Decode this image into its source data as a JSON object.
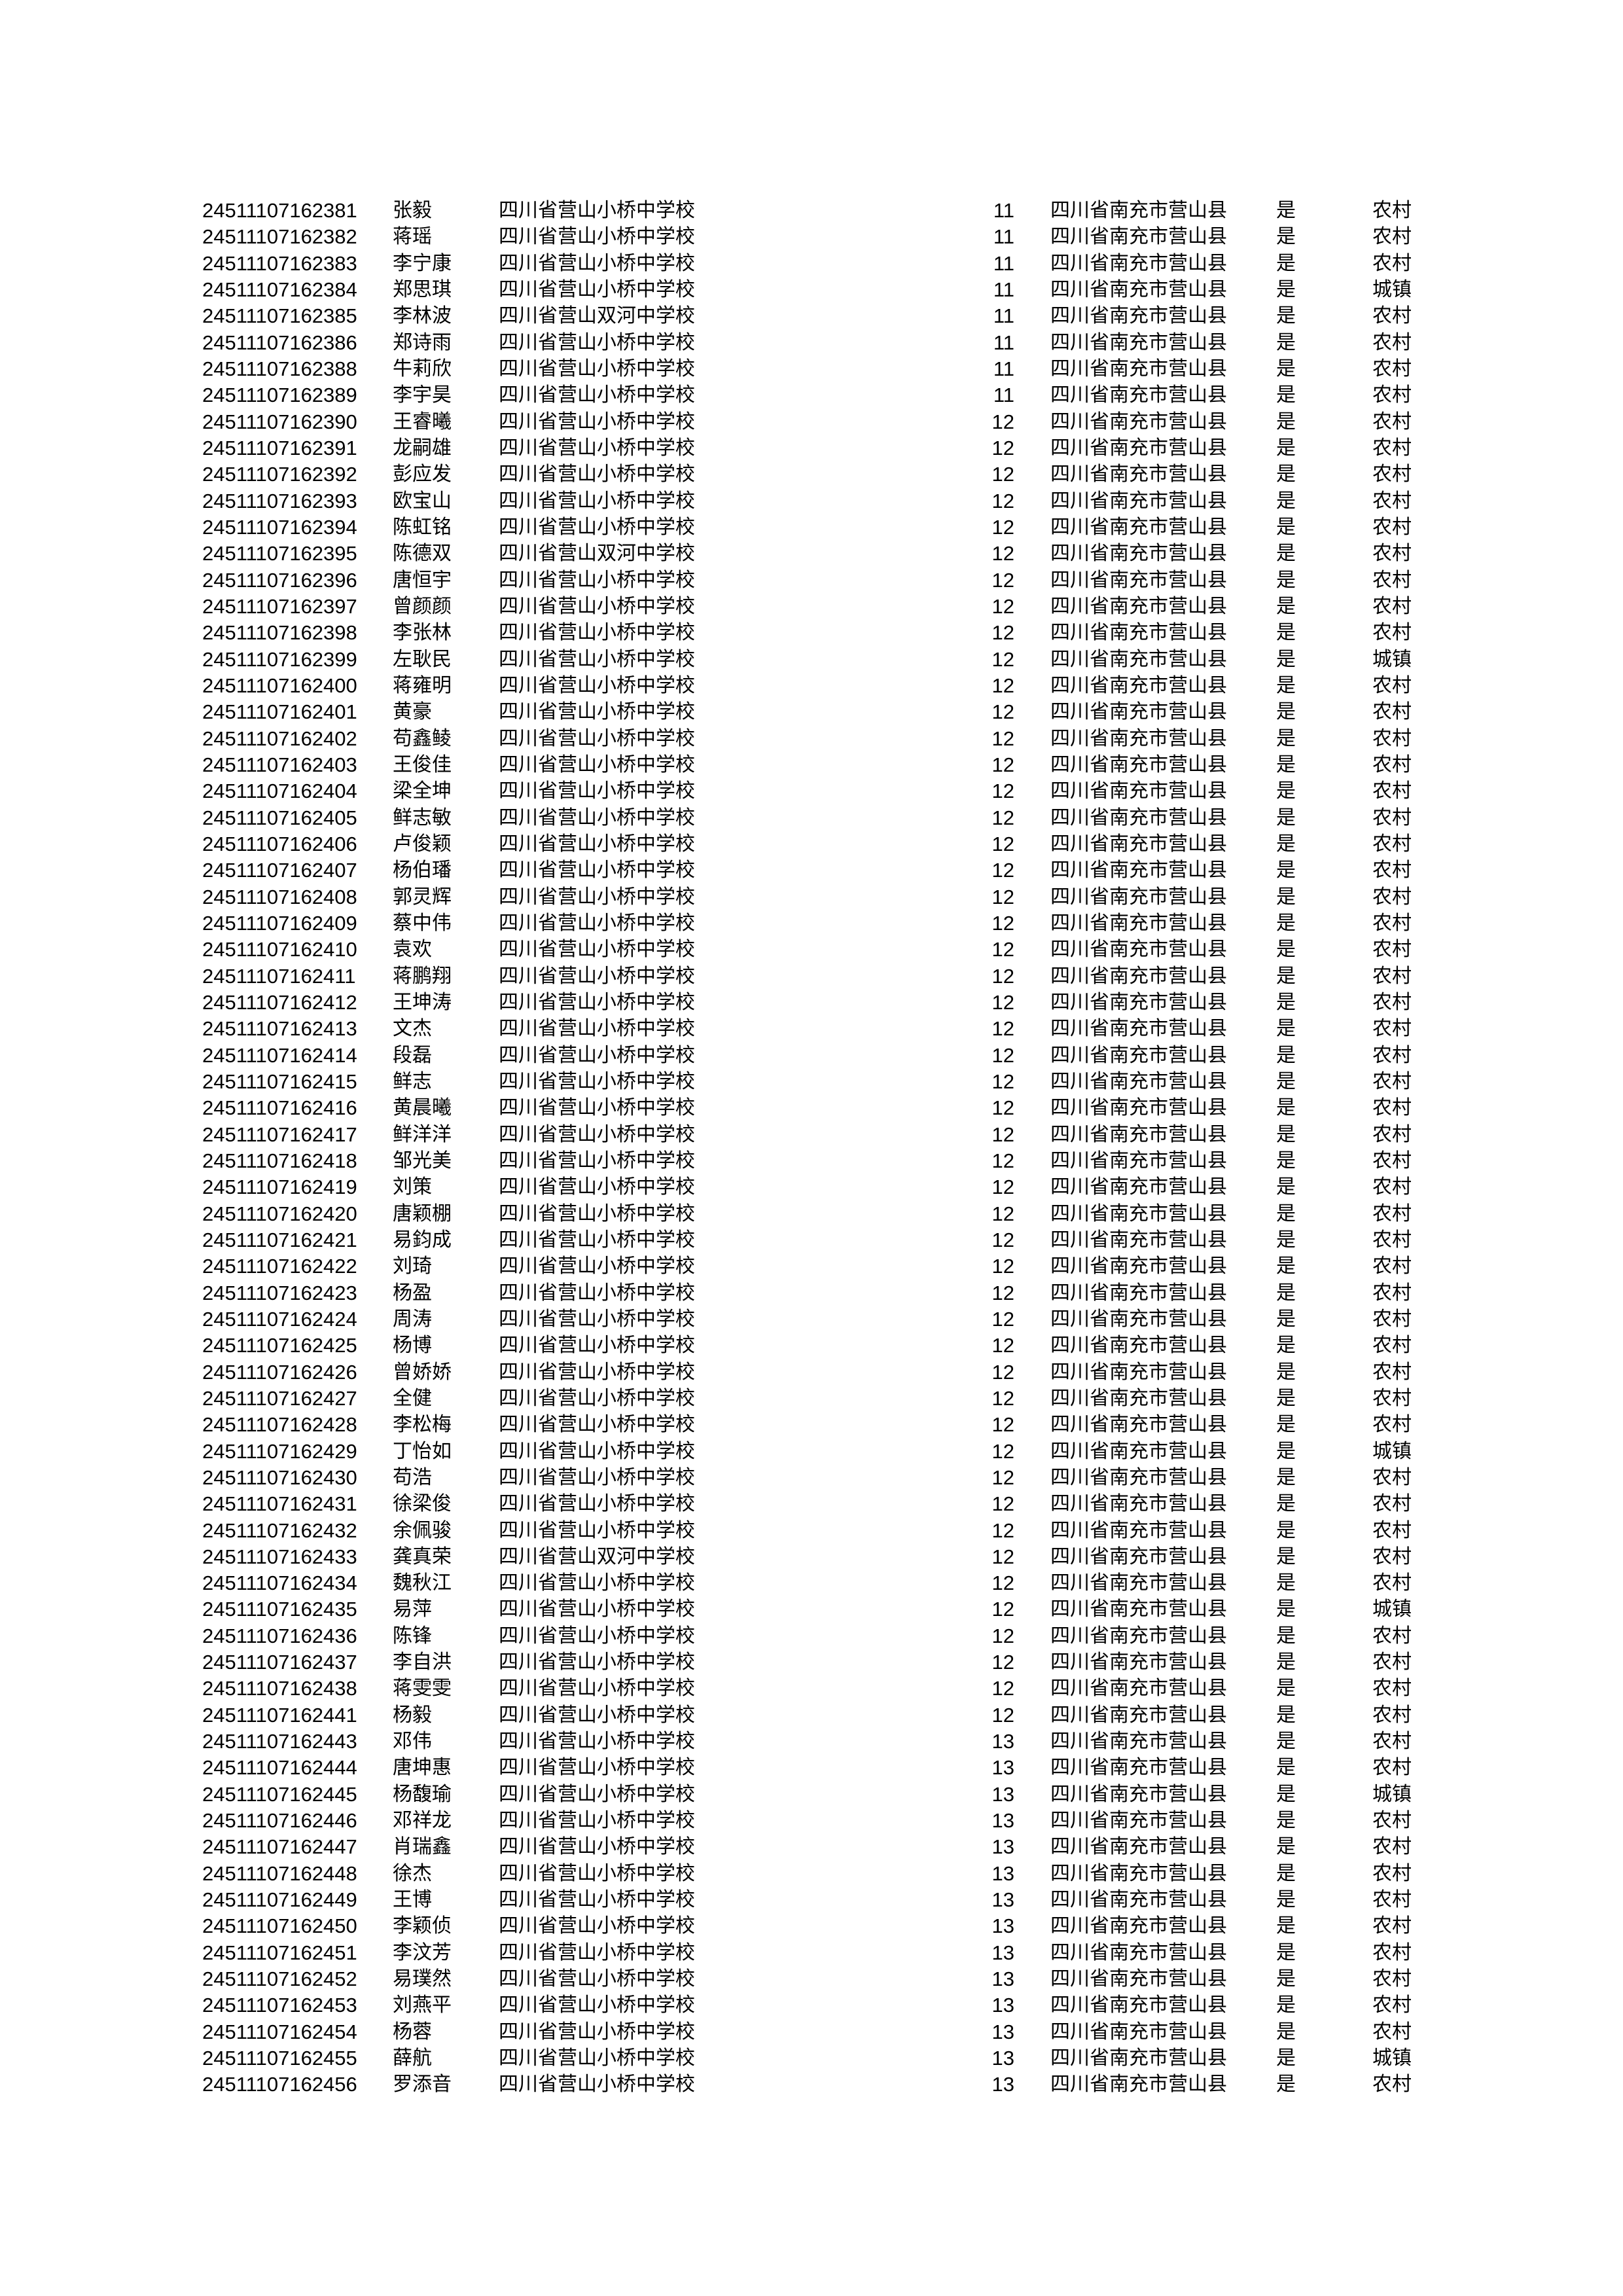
{
  "rows": [
    {
      "id": "24511107162381",
      "name": "张毅",
      "school": "四川省营山小桥中学校",
      "grade": "11",
      "address": "四川省南充市营山县",
      "flag": "是",
      "area": "农村"
    },
    {
      "id": "24511107162382",
      "name": "蒋瑶",
      "school": "四川省营山小桥中学校",
      "grade": "11",
      "address": "四川省南充市营山县",
      "flag": "是",
      "area": "农村"
    },
    {
      "id": "24511107162383",
      "name": "李宁康",
      "school": "四川省营山小桥中学校",
      "grade": "11",
      "address": "四川省南充市营山县",
      "flag": "是",
      "area": "农村"
    },
    {
      "id": "24511107162384",
      "name": "郑思琪",
      "school": "四川省营山小桥中学校",
      "grade": "11",
      "address": "四川省南充市营山县",
      "flag": "是",
      "area": "城镇"
    },
    {
      "id": "24511107162385",
      "name": "李林波",
      "school": "四川省营山双河中学校",
      "grade": "11",
      "address": "四川省南充市营山县",
      "flag": "是",
      "area": "农村"
    },
    {
      "id": "24511107162386",
      "name": "郑诗雨",
      "school": "四川省营山小桥中学校",
      "grade": "11",
      "address": "四川省南充市营山县",
      "flag": "是",
      "area": "农村"
    },
    {
      "id": "24511107162388",
      "name": "牛莉欣",
      "school": "四川省营山小桥中学校",
      "grade": "11",
      "address": "四川省南充市营山县",
      "flag": "是",
      "area": "农村"
    },
    {
      "id": "24511107162389",
      "name": "李宇昊",
      "school": "四川省营山小桥中学校",
      "grade": "11",
      "address": "四川省南充市营山县",
      "flag": "是",
      "area": "农村"
    },
    {
      "id": "24511107162390",
      "name": "王睿曦",
      "school": "四川省营山小桥中学校",
      "grade": "12",
      "address": "四川省南充市营山县",
      "flag": "是",
      "area": "农村"
    },
    {
      "id": "24511107162391",
      "name": "龙嗣雄",
      "school": "四川省营山小桥中学校",
      "grade": "12",
      "address": "四川省南充市营山县",
      "flag": "是",
      "area": "农村"
    },
    {
      "id": "24511107162392",
      "name": "彭应发",
      "school": "四川省营山小桥中学校",
      "grade": "12",
      "address": "四川省南充市营山县",
      "flag": "是",
      "area": "农村"
    },
    {
      "id": "24511107162393",
      "name": "欧宝山",
      "school": "四川省营山小桥中学校",
      "grade": "12",
      "address": "四川省南充市营山县",
      "flag": "是",
      "area": "农村"
    },
    {
      "id": "24511107162394",
      "name": "陈虹铭",
      "school": "四川省营山小桥中学校",
      "grade": "12",
      "address": "四川省南充市营山县",
      "flag": "是",
      "area": "农村"
    },
    {
      "id": "24511107162395",
      "name": "陈德双",
      "school": "四川省营山双河中学校",
      "grade": "12",
      "address": "四川省南充市营山县",
      "flag": "是",
      "area": "农村"
    },
    {
      "id": "24511107162396",
      "name": "唐恒宇",
      "school": "四川省营山小桥中学校",
      "grade": "12",
      "address": "四川省南充市营山县",
      "flag": "是",
      "area": "农村"
    },
    {
      "id": "24511107162397",
      "name": "曾颜颜",
      "school": "四川省营山小桥中学校",
      "grade": "12",
      "address": "四川省南充市营山县",
      "flag": "是",
      "area": "农村"
    },
    {
      "id": "24511107162398",
      "name": "李张林",
      "school": "四川省营山小桥中学校",
      "grade": "12",
      "address": "四川省南充市营山县",
      "flag": "是",
      "area": "农村"
    },
    {
      "id": "24511107162399",
      "name": "左耿民",
      "school": "四川省营山小桥中学校",
      "grade": "12",
      "address": "四川省南充市营山县",
      "flag": "是",
      "area": "城镇"
    },
    {
      "id": "24511107162400",
      "name": "蒋雍明",
      "school": "四川省营山小桥中学校",
      "grade": "12",
      "address": "四川省南充市营山县",
      "flag": "是",
      "area": "农村"
    },
    {
      "id": "24511107162401",
      "name": "黄豪",
      "school": "四川省营山小桥中学校",
      "grade": "12",
      "address": "四川省南充市营山县",
      "flag": "是",
      "area": "农村"
    },
    {
      "id": "24511107162402",
      "name": "苟鑫鲮",
      "school": "四川省营山小桥中学校",
      "grade": "12",
      "address": "四川省南充市营山县",
      "flag": "是",
      "area": "农村"
    },
    {
      "id": "24511107162403",
      "name": "王俊佳",
      "school": "四川省营山小桥中学校",
      "grade": "12",
      "address": "四川省南充市营山县",
      "flag": "是",
      "area": "农村"
    },
    {
      "id": "24511107162404",
      "name": "梁全坤",
      "school": "四川省营山小桥中学校",
      "grade": "12",
      "address": "四川省南充市营山县",
      "flag": "是",
      "area": "农村"
    },
    {
      "id": "24511107162405",
      "name": "鲜志敏",
      "school": "四川省营山小桥中学校",
      "grade": "12",
      "address": "四川省南充市营山县",
      "flag": "是",
      "area": "农村"
    },
    {
      "id": "24511107162406",
      "name": "卢俊颖",
      "school": "四川省营山小桥中学校",
      "grade": "12",
      "address": "四川省南充市营山县",
      "flag": "是",
      "area": "农村"
    },
    {
      "id": "24511107162407",
      "name": "杨伯璠",
      "school": "四川省营山小桥中学校",
      "grade": "12",
      "address": "四川省南充市营山县",
      "flag": "是",
      "area": "农村"
    },
    {
      "id": "24511107162408",
      "name": "郭灵辉",
      "school": "四川省营山小桥中学校",
      "grade": "12",
      "address": "四川省南充市营山县",
      "flag": "是",
      "area": "农村"
    },
    {
      "id": "24511107162409",
      "name": "蔡中伟",
      "school": "四川省营山小桥中学校",
      "grade": "12",
      "address": "四川省南充市营山县",
      "flag": "是",
      "area": "农村"
    },
    {
      "id": "24511107162410",
      "name": "袁欢",
      "school": "四川省营山小桥中学校",
      "grade": "12",
      "address": "四川省南充市营山县",
      "flag": "是",
      "area": "农村"
    },
    {
      "id": "24511107162411",
      "name": "蒋鹏翔",
      "school": "四川省营山小桥中学校",
      "grade": "12",
      "address": "四川省南充市营山县",
      "flag": "是",
      "area": "农村"
    },
    {
      "id": "24511107162412",
      "name": "王坤涛",
      "school": "四川省营山小桥中学校",
      "grade": "12",
      "address": "四川省南充市营山县",
      "flag": "是",
      "area": "农村"
    },
    {
      "id": "24511107162413",
      "name": "文杰",
      "school": "四川省营山小桥中学校",
      "grade": "12",
      "address": "四川省南充市营山县",
      "flag": "是",
      "area": "农村"
    },
    {
      "id": "24511107162414",
      "name": "段磊",
      "school": "四川省营山小桥中学校",
      "grade": "12",
      "address": "四川省南充市营山县",
      "flag": "是",
      "area": "农村"
    },
    {
      "id": "24511107162415",
      "name": "鲜志",
      "school": "四川省营山小桥中学校",
      "grade": "12",
      "address": "四川省南充市营山县",
      "flag": "是",
      "area": "农村"
    },
    {
      "id": "24511107162416",
      "name": "黄晨曦",
      "school": "四川省营山小桥中学校",
      "grade": "12",
      "address": "四川省南充市营山县",
      "flag": "是",
      "area": "农村"
    },
    {
      "id": "24511107162417",
      "name": "鲜洋洋",
      "school": "四川省营山小桥中学校",
      "grade": "12",
      "address": "四川省南充市营山县",
      "flag": "是",
      "area": "农村"
    },
    {
      "id": "24511107162418",
      "name": "邹光美",
      "school": "四川省营山小桥中学校",
      "grade": "12",
      "address": "四川省南充市营山县",
      "flag": "是",
      "area": "农村"
    },
    {
      "id": "24511107162419",
      "name": "刘策",
      "school": "四川省营山小桥中学校",
      "grade": "12",
      "address": "四川省南充市营山县",
      "flag": "是",
      "area": "农村"
    },
    {
      "id": "24511107162420",
      "name": "唐颖棚",
      "school": "四川省营山小桥中学校",
      "grade": "12",
      "address": "四川省南充市营山县",
      "flag": "是",
      "area": "农村"
    },
    {
      "id": "24511107162421",
      "name": "易鈞成",
      "school": "四川省营山小桥中学校",
      "grade": "12",
      "address": "四川省南充市营山县",
      "flag": "是",
      "area": "农村"
    },
    {
      "id": "24511107162422",
      "name": "刘琦",
      "school": "四川省营山小桥中学校",
      "grade": "12",
      "address": "四川省南充市营山县",
      "flag": "是",
      "area": "农村"
    },
    {
      "id": "24511107162423",
      "name": "杨盈",
      "school": "四川省营山小桥中学校",
      "grade": "12",
      "address": "四川省南充市营山县",
      "flag": "是",
      "area": "农村"
    },
    {
      "id": "24511107162424",
      "name": "周涛",
      "school": "四川省营山小桥中学校",
      "grade": "12",
      "address": "四川省南充市营山县",
      "flag": "是",
      "area": "农村"
    },
    {
      "id": "24511107162425",
      "name": "杨博",
      "school": "四川省营山小桥中学校",
      "grade": "12",
      "address": "四川省南充市营山县",
      "flag": "是",
      "area": "农村"
    },
    {
      "id": "24511107162426",
      "name": "曾娇娇",
      "school": "四川省营山小桥中学校",
      "grade": "12",
      "address": "四川省南充市营山县",
      "flag": "是",
      "area": "农村"
    },
    {
      "id": "24511107162427",
      "name": "全健",
      "school": "四川省营山小桥中学校",
      "grade": "12",
      "address": "四川省南充市营山县",
      "flag": "是",
      "area": "农村"
    },
    {
      "id": "24511107162428",
      "name": "李松梅",
      "school": "四川省营山小桥中学校",
      "grade": "12",
      "address": "四川省南充市营山县",
      "flag": "是",
      "area": "农村"
    },
    {
      "id": "24511107162429",
      "name": "丁怡如",
      "school": "四川省营山小桥中学校",
      "grade": "12",
      "address": "四川省南充市营山县",
      "flag": "是",
      "area": "城镇"
    },
    {
      "id": "24511107162430",
      "name": "苟浩",
      "school": "四川省营山小桥中学校",
      "grade": "12",
      "address": "四川省南充市营山县",
      "flag": "是",
      "area": "农村"
    },
    {
      "id": "24511107162431",
      "name": "徐梁俊",
      "school": "四川省营山小桥中学校",
      "grade": "12",
      "address": "四川省南充市营山县",
      "flag": "是",
      "area": "农村"
    },
    {
      "id": "24511107162432",
      "name": "余佩骏",
      "school": "四川省营山小桥中学校",
      "grade": "12",
      "address": "四川省南充市营山县",
      "flag": "是",
      "area": "农村"
    },
    {
      "id": "24511107162433",
      "name": "龚真荣",
      "school": "四川省营山双河中学校",
      "grade": "12",
      "address": "四川省南充市营山县",
      "flag": "是",
      "area": "农村"
    },
    {
      "id": "24511107162434",
      "name": "魏秋江",
      "school": "四川省营山小桥中学校",
      "grade": "12",
      "address": "四川省南充市营山县",
      "flag": "是",
      "area": "农村"
    },
    {
      "id": "24511107162435",
      "name": "易萍",
      "school": "四川省营山小桥中学校",
      "grade": "12",
      "address": "四川省南充市营山县",
      "flag": "是",
      "area": "城镇"
    },
    {
      "id": "24511107162436",
      "name": "陈锋",
      "school": "四川省营山小桥中学校",
      "grade": "12",
      "address": "四川省南充市营山县",
      "flag": "是",
      "area": "农村"
    },
    {
      "id": "24511107162437",
      "name": "李自洪",
      "school": "四川省营山小桥中学校",
      "grade": "12",
      "address": "四川省南充市营山县",
      "flag": "是",
      "area": "农村"
    },
    {
      "id": "24511107162438",
      "name": "蒋雯雯",
      "school": "四川省营山小桥中学校",
      "grade": "12",
      "address": "四川省南充市营山县",
      "flag": "是",
      "area": "农村"
    },
    {
      "id": "24511107162441",
      "name": "杨毅",
      "school": "四川省营山小桥中学校",
      "grade": "12",
      "address": "四川省南充市营山县",
      "flag": "是",
      "area": "农村"
    },
    {
      "id": "24511107162443",
      "name": "邓伟",
      "school": "四川省营山小桥中学校",
      "grade": "13",
      "address": "四川省南充市营山县",
      "flag": "是",
      "area": "农村"
    },
    {
      "id": "24511107162444",
      "name": "唐坤惠",
      "school": "四川省营山小桥中学校",
      "grade": "13",
      "address": "四川省南充市营山县",
      "flag": "是",
      "area": "农村"
    },
    {
      "id": "24511107162445",
      "name": "杨馥瑜",
      "school": "四川省营山小桥中学校",
      "grade": "13",
      "address": "四川省南充市营山县",
      "flag": "是",
      "area": "城镇"
    },
    {
      "id": "24511107162446",
      "name": "邓祥龙",
      "school": "四川省营山小桥中学校",
      "grade": "13",
      "address": "四川省南充市营山县",
      "flag": "是",
      "area": "农村"
    },
    {
      "id": "24511107162447",
      "name": "肖瑞鑫",
      "school": "四川省营山小桥中学校",
      "grade": "13",
      "address": "四川省南充市营山县",
      "flag": "是",
      "area": "农村"
    },
    {
      "id": "24511107162448",
      "name": "徐杰",
      "school": "四川省营山小桥中学校",
      "grade": "13",
      "address": "四川省南充市营山县",
      "flag": "是",
      "area": "农村"
    },
    {
      "id": "24511107162449",
      "name": "王博",
      "school": "四川省营山小桥中学校",
      "grade": "13",
      "address": "四川省南充市营山县",
      "flag": "是",
      "area": "农村"
    },
    {
      "id": "24511107162450",
      "name": "李颖侦",
      "school": "四川省营山小桥中学校",
      "grade": "13",
      "address": "四川省南充市营山县",
      "flag": "是",
      "area": "农村"
    },
    {
      "id": "24511107162451",
      "name": "李汶芳",
      "school": "四川省营山小桥中学校",
      "grade": "13",
      "address": "四川省南充市营山县",
      "flag": "是",
      "area": "农村"
    },
    {
      "id": "24511107162452",
      "name": "易璞然",
      "school": "四川省营山小桥中学校",
      "grade": "13",
      "address": "四川省南充市营山县",
      "flag": "是",
      "area": "农村"
    },
    {
      "id": "24511107162453",
      "name": "刘燕平",
      "school": "四川省营山小桥中学校",
      "grade": "13",
      "address": "四川省南充市营山县",
      "flag": "是",
      "area": "农村"
    },
    {
      "id": "24511107162454",
      "name": "杨蓉",
      "school": "四川省营山小桥中学校",
      "grade": "13",
      "address": "四川省南充市营山县",
      "flag": "是",
      "area": "农村"
    },
    {
      "id": "24511107162455",
      "name": "薛航",
      "school": "四川省营山小桥中学校",
      "grade": "13",
      "address": "四川省南充市营山县",
      "flag": "是",
      "area": "城镇"
    },
    {
      "id": "24511107162456",
      "name": "罗添音",
      "school": "四川省营山小桥中学校",
      "grade": "13",
      "address": "四川省南充市营山县",
      "flag": "是",
      "area": "农村"
    }
  ]
}
